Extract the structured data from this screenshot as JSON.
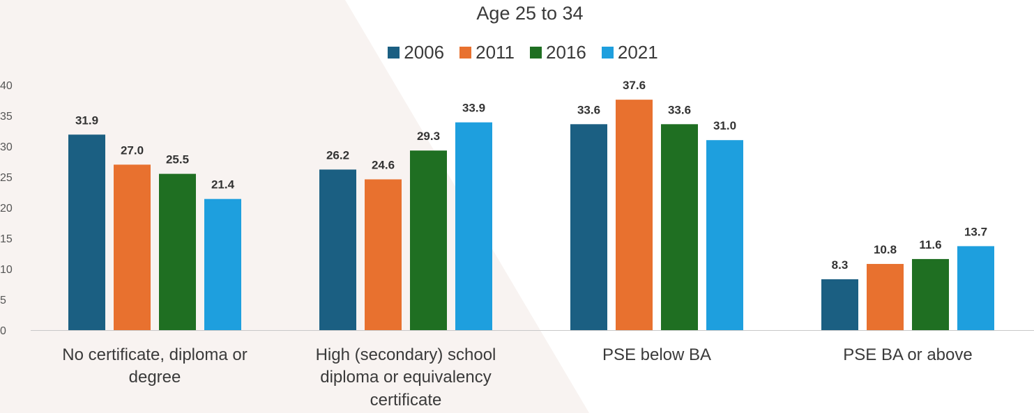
{
  "chart_data": {
    "type": "bar",
    "title": "Age 25 to 34",
    "categories": [
      "No certificate, diploma or degree",
      "High (secondary) school diploma or equivalency certificate",
      "PSE below BA",
      "PSE BA or above"
    ],
    "series": [
      {
        "name": "2006",
        "color": "#1b5f82",
        "values": [
          31.9,
          26.2,
          33.6,
          8.3
        ]
      },
      {
        "name": "2011",
        "color": "#e8712f",
        "values": [
          27.0,
          24.6,
          37.6,
          10.8
        ]
      },
      {
        "name": "2016",
        "color": "#1f6f22",
        "values": [
          25.5,
          29.3,
          33.6,
          11.6
        ]
      },
      {
        "name": "2021",
        "color": "#1e9fde",
        "values": [
          21.4,
          33.9,
          31.0,
          13.7
        ]
      }
    ],
    "ylim": [
      0,
      40
    ],
    "yticks": [
      "0",
      "5",
      "10",
      "15",
      "20",
      "25",
      "30",
      "35",
      "40"
    ],
    "data_labels": [
      [
        "31.9",
        "26.2",
        "33.6",
        "8.3"
      ],
      [
        "27.0",
        "24.6",
        "37.6",
        "10.8"
      ],
      [
        "25.5",
        "29.3",
        "33.6",
        "11.6"
      ],
      [
        "21.4",
        "33.9",
        "31.0",
        "13.7"
      ]
    ],
    "legend_position": "top-center",
    "grid": false
  }
}
